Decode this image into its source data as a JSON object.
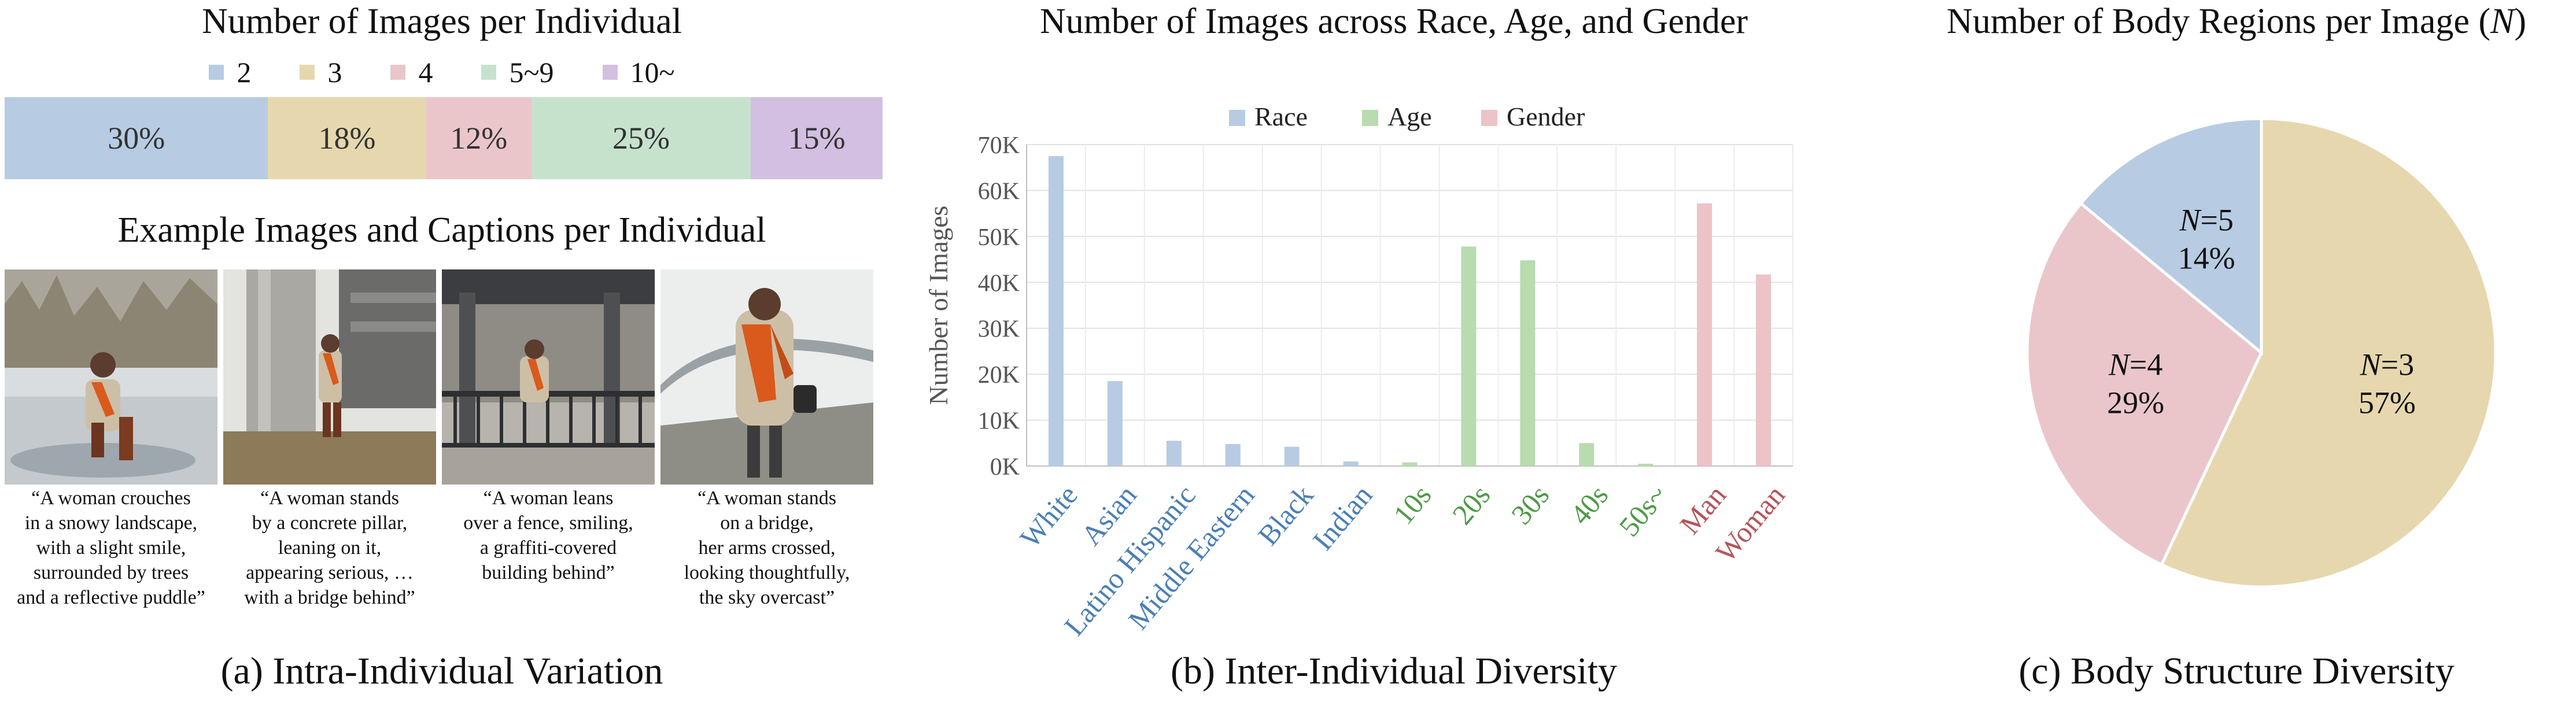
{
  "panel_a": {
    "title": "Number of Images per Individual",
    "legend": [
      {
        "label": "2",
        "color": "#b7cce3"
      },
      {
        "label": "3",
        "color": "#e6d7ae"
      },
      {
        "label": "4",
        "color": "#eac6cb"
      },
      {
        "label": "5~9",
        "color": "#c6e2cd"
      },
      {
        "label": "10~",
        "color": "#d3bfe1"
      }
    ],
    "subtitle": "Example Images and Captions per Individual",
    "captions": [
      "“A woman crouches\nin a snowy landscape,\nwith a slight smile,\nsurrounded by trees\nand a reflective puddle”",
      "“A woman stands\nby a concrete pillar,\nleaning on it,\nappearing serious, …\nwith a bridge behind”",
      "“A woman leans\nover a fence, smiling,\na graffiti-covered\nbuilding behind”",
      "“A woman stands\non a bridge,\nher arms crossed,\nlooking thoughtfully,\nthe sky overcast”"
    ],
    "figure_label": "(a) Intra-Individual Variation"
  },
  "panel_b": {
    "title": "Number of Images across Race, Age, and Gender",
    "figure_label": "(b) Inter-Individual Diversity"
  },
  "panel_c": {
    "title_main": "Number of Body Regions per Image (",
    "title_var": "N",
    "title_end": ")",
    "figure_label": "(c) Body Structure Diversity"
  },
  "chart_data": [
    {
      "type": "bar",
      "orientation": "horizontal-stacked",
      "title": "Number of Images per Individual",
      "categories": [
        "2",
        "3",
        "4",
        "5~9",
        "10~"
      ],
      "values": [
        30,
        18,
        12,
        25,
        15
      ],
      "labels": [
        "30%",
        "18%",
        "12%",
        "25%",
        "15%"
      ],
      "colors": [
        "#b7cce3",
        "#e6d7ae",
        "#eac6cb",
        "#c6e2cd",
        "#d3bfe1"
      ]
    },
    {
      "type": "bar",
      "title": "Number of Images across Race, Age, and Gender",
      "ylabel": "Number of Images",
      "ylim": [
        0,
        70000
      ],
      "yticks": [
        0,
        10000,
        20000,
        30000,
        40000,
        50000,
        60000,
        70000
      ],
      "ytick_labels": [
        "0K",
        "10K",
        "20K",
        "30K",
        "40K",
        "50K",
        "60K",
        "70K"
      ],
      "grid": true,
      "legend": [
        {
          "label": "Race",
          "color": "#b7cce3",
          "text_color": "#4a7fb5"
        },
        {
          "label": "Age",
          "color": "#b9dbb0",
          "text_color": "#4e9a46"
        },
        {
          "label": "Gender",
          "color": "#ecc3c6",
          "text_color": "#b5545a"
        }
      ],
      "categories": [
        "White",
        "Asian",
        "Latino Hispanic",
        "Middle Eastern",
        "Black",
        "Indian",
        "10s",
        "20s",
        "30s",
        "40s",
        "50s~",
        "Man",
        "Woman"
      ],
      "groups": [
        "Race",
        "Race",
        "Race",
        "Race",
        "Race",
        "Race",
        "Age",
        "Age",
        "Age",
        "Age",
        "Age",
        "Gender",
        "Gender"
      ],
      "values": [
        67500,
        18500,
        5500,
        4800,
        4200,
        1000,
        800,
        47800,
        44800,
        5000,
        500,
        57200,
        41700
      ]
    },
    {
      "type": "pie",
      "title": "Number of Body Regions per Image (N)",
      "slices": [
        {
          "var": "N",
          "eq": "=3",
          "value": 57,
          "label": "57%",
          "color": "#e6d7ae"
        },
        {
          "var": "N",
          "eq": "=4",
          "value": 29,
          "label": "29%",
          "color": "#eac6cb"
        },
        {
          "var": "N",
          "eq": "=5",
          "value": 14,
          "label": "14%",
          "color": "#b7cce3"
        }
      ]
    }
  ]
}
